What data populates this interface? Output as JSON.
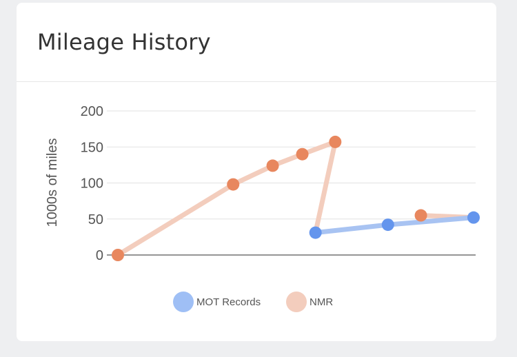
{
  "card": {
    "title": "Mileage History"
  },
  "chart_data": {
    "type": "line",
    "title": "",
    "ylabel": "1000s of miles",
    "xlabel": "",
    "ylim": [
      0,
      200
    ],
    "y_ticks": [
      0,
      50,
      100,
      150,
      200
    ],
    "grid": true,
    "legend_placement": "bottom",
    "series": [
      {
        "name": "MOT Records",
        "color": "#6495ed",
        "line_color": "#a8c3f2",
        "points": [
          {
            "x": 6,
            "y": 31
          },
          {
            "x": 8.2,
            "y": 42
          },
          {
            "x": 10.8,
            "y": 52
          }
        ]
      },
      {
        "name": "NMR",
        "color": "#e8875e",
        "line_color": "#f3cdbd",
        "segments": [
          [
            {
              "x": 0,
              "y": 0
            },
            {
              "x": 3.5,
              "y": 98
            },
            {
              "x": 4.7,
              "y": 124
            },
            {
              "x": 5.6,
              "y": 140
            },
            {
              "x": 6.6,
              "y": 157
            },
            {
              "x": 6,
              "y": 31
            }
          ],
          [
            {
              "x": 9.2,
              "y": 55
            },
            {
              "x": 10.8,
              "y": 52
            }
          ]
        ],
        "marker_points": [
          {
            "x": 0,
            "y": 0
          },
          {
            "x": 3.5,
            "y": 98
          },
          {
            "x": 4.7,
            "y": 124
          },
          {
            "x": 5.6,
            "y": 140
          },
          {
            "x": 6.6,
            "y": 157
          },
          {
            "x": 9.2,
            "y": 55
          }
        ]
      }
    ]
  }
}
